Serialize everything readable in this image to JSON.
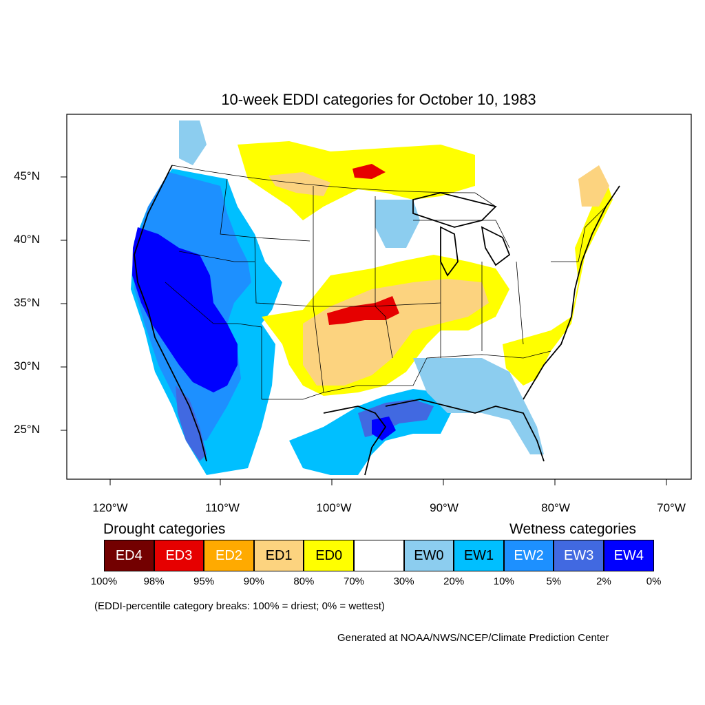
{
  "map": {
    "title": "10-week EDDI categories for October 10, 1983",
    "lat_labels": [
      "45°N",
      "40°N",
      "35°N",
      "30°N",
      "25°N"
    ],
    "lon_labels": [
      "120°W",
      "110°W",
      "100°W",
      "90°W",
      "80°W",
      "70°W"
    ]
  },
  "legend": {
    "drought_heading": "Drought categories",
    "wetness_heading": "Wetness categories",
    "categories": [
      {
        "label": "ED4",
        "color": "#730000",
        "text_color": "#ffffff"
      },
      {
        "label": "ED3",
        "color": "#e60000",
        "text_color": "#ffffff"
      },
      {
        "label": "ED2",
        "color": "#ffaa00",
        "text_color": "#ffffff"
      },
      {
        "label": "ED1",
        "color": "#fcd37f",
        "text_color": "#000000"
      },
      {
        "label": "ED0",
        "color": "#ffff00",
        "text_color": "#000000"
      },
      {
        "label": "",
        "color": "#ffffff",
        "text_color": "#000000"
      },
      {
        "label": "EW0",
        "color": "#8ccdef",
        "text_color": "#000000"
      },
      {
        "label": "EW1",
        "color": "#00bfff",
        "text_color": "#000000"
      },
      {
        "label": "EW2",
        "color": "#1d90ff",
        "text_color": "#ffffff"
      },
      {
        "label": "EW3",
        "color": "#4169e1",
        "text_color": "#ffffff"
      },
      {
        "label": "EW4",
        "color": "#0000ff",
        "text_color": "#ffffff"
      }
    ],
    "percentiles": [
      "100%",
      "98%",
      "95%",
      "90%",
      "80%",
      "70%",
      "30%",
      "20%",
      "10%",
      "5%",
      "2%",
      "0%"
    ]
  },
  "note": "(EDDI-percentile category breaks: 100% = driest; 0% = wettest)",
  "credit": "Generated at NOAA/NWS/NCEP/Climate Prediction Center"
}
